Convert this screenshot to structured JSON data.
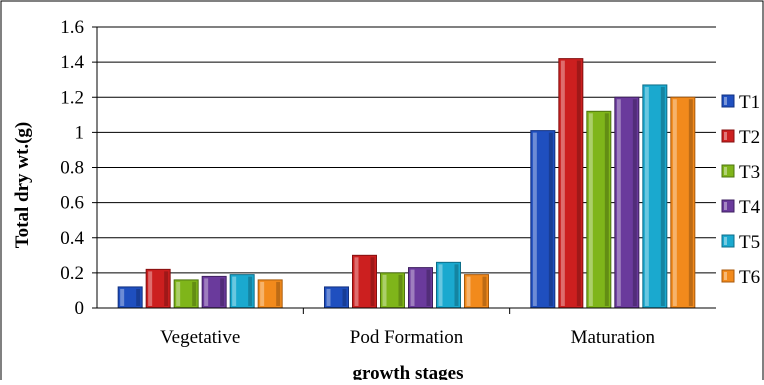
{
  "chart_data": {
    "type": "bar",
    "categories": [
      "Vegetative",
      "Pod Formation",
      "Maturation"
    ],
    "series": [
      {
        "name": "T1",
        "values": [
          0.12,
          0.12,
          1.01
        ]
      },
      {
        "name": "T2",
        "values": [
          0.22,
          0.3,
          1.42
        ]
      },
      {
        "name": "T3",
        "values": [
          0.16,
          0.2,
          1.12
        ]
      },
      {
        "name": "T4",
        "values": [
          0.18,
          0.23,
          1.2
        ]
      },
      {
        "name": "T5",
        "values": [
          0.19,
          0.26,
          1.27
        ]
      },
      {
        "name": "T6",
        "values": [
          0.16,
          0.19,
          1.2
        ]
      }
    ],
    "xlabel": "growth stages",
    "ylabel": "Total dry  wt.(g)",
    "ylim": [
      0,
      1.6
    ],
    "yticks": [
      "0",
      "0.2",
      "0.4",
      "0.6",
      "0.8",
      "1",
      "1.2",
      "1.4",
      "1.6"
    ],
    "grid": true,
    "legend_position": "right",
    "colors": [
      "#1f4fbf",
      "#cc1f1f",
      "#7fb51a",
      "#6a3a9c",
      "#1aa9cf",
      "#f28a1c"
    ],
    "dark_colors": [
      "#123080",
      "#851010",
      "#4d7410",
      "#3f2060",
      "#0d6d88",
      "#a85a0c"
    ]
  }
}
